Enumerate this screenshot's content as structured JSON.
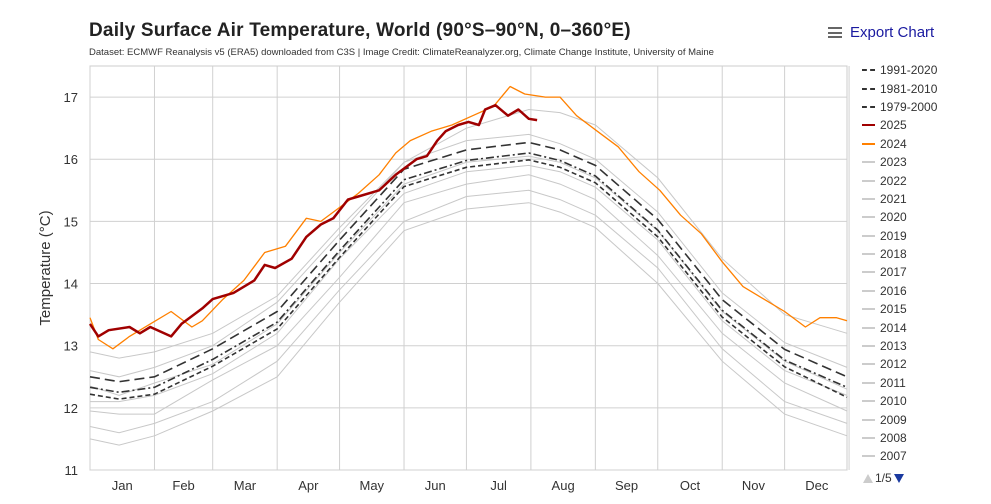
{
  "header": {
    "title": "Daily Surface Air Temperature, World (90°S–90°N, 0–360°E)",
    "subtitle": "Dataset: ECMWF Reanalysis v5 (ERA5) downloaded from C3S | Image Credit: ClimateReanalyzer.org, Climate Change Institute, University of Maine",
    "export_label": "Export Chart",
    "export_icon": "hamburger-menu-icon"
  },
  "legend": {
    "items": [
      {
        "label": "1991-2020",
        "color": "#333333",
        "style": "long-dash"
      },
      {
        "label": "1981-2010",
        "color": "#333333",
        "style": "dash-dot"
      },
      {
        "label": "1979-2000",
        "color": "#333333",
        "style": "short-dash"
      },
      {
        "label": "2025",
        "color": "#a00000",
        "style": "solid"
      },
      {
        "label": "2024",
        "color": "#ff8000",
        "style": "solid"
      },
      {
        "label": "2023",
        "color": "#cccccc",
        "style": "solid"
      },
      {
        "label": "2022",
        "color": "#cccccc",
        "style": "solid"
      },
      {
        "label": "2021",
        "color": "#cccccc",
        "style": "solid"
      },
      {
        "label": "2020",
        "color": "#cccccc",
        "style": "solid"
      },
      {
        "label": "2019",
        "color": "#cccccc",
        "style": "solid"
      },
      {
        "label": "2018",
        "color": "#cccccc",
        "style": "solid"
      },
      {
        "label": "2017",
        "color": "#cccccc",
        "style": "solid"
      },
      {
        "label": "2016",
        "color": "#cccccc",
        "style": "solid"
      },
      {
        "label": "2015",
        "color": "#cccccc",
        "style": "solid"
      },
      {
        "label": "2014",
        "color": "#cccccc",
        "style": "solid"
      },
      {
        "label": "2013",
        "color": "#cccccc",
        "style": "solid"
      },
      {
        "label": "2012",
        "color": "#cccccc",
        "style": "solid"
      },
      {
        "label": "2011",
        "color": "#cccccc",
        "style": "solid"
      },
      {
        "label": "2010",
        "color": "#cccccc",
        "style": "solid"
      },
      {
        "label": "2009",
        "color": "#cccccc",
        "style": "solid"
      },
      {
        "label": "2008",
        "color": "#cccccc",
        "style": "solid"
      },
      {
        "label": "2007",
        "color": "#cccccc",
        "style": "solid"
      }
    ],
    "page": "1/5"
  },
  "chart_data": {
    "type": "line",
    "title": "Daily Surface Air Temperature, World (90°S–90°N, 0–360°E)",
    "xlabel": "",
    "ylabel": "Temperature (°C)",
    "x_unit": "day of year",
    "xlim": [
      1,
      365
    ],
    "ylim": [
      11,
      17.5
    ],
    "yticks": [
      11,
      12,
      13,
      14,
      15,
      16,
      17
    ],
    "month_labels": [
      "Jan",
      "Feb",
      "Mar",
      "Apr",
      "May",
      "Jun",
      "Jul",
      "Aug",
      "Sep",
      "Oct",
      "Nov",
      "Dec"
    ],
    "grid": true,
    "legend_position": "right",
    "series": [
      {
        "name": "1991-2020",
        "color": "#333333",
        "style": "long-dash",
        "x": [
          1,
          15,
          32,
          60,
          91,
          121,
          152,
          182,
          212,
          227,
          244,
          274,
          305,
          335,
          365
        ],
        "y": [
          12.5,
          12.42,
          12.5,
          12.95,
          13.55,
          14.7,
          15.84,
          16.15,
          16.27,
          16.15,
          15.9,
          15.03,
          13.74,
          12.94,
          12.5
        ]
      },
      {
        "name": "1981-2010",
        "color": "#333333",
        "style": "dash-dot",
        "x": [
          1,
          15,
          32,
          60,
          91,
          121,
          152,
          182,
          212,
          227,
          244,
          274,
          305,
          335,
          365
        ],
        "y": [
          12.33,
          12.25,
          12.33,
          12.78,
          13.38,
          14.53,
          15.67,
          15.98,
          16.1,
          15.98,
          15.73,
          14.86,
          13.57,
          12.77,
          12.33
        ]
      },
      {
        "name": "1979-2000",
        "color": "#333333",
        "style": "short-dash",
        "x": [
          1,
          15,
          32,
          60,
          91,
          121,
          152,
          182,
          212,
          227,
          244,
          274,
          305,
          335,
          365
        ],
        "y": [
          12.22,
          12.14,
          12.22,
          12.67,
          13.27,
          14.42,
          15.56,
          15.87,
          15.99,
          15.87,
          15.62,
          14.75,
          13.46,
          12.66,
          12.17
        ]
      },
      {
        "name": "2024",
        "color": "#ff8000",
        "style": "solid",
        "x": [
          1,
          5,
          12,
          20,
          30,
          40,
          50,
          55,
          65,
          75,
          85,
          95,
          105,
          112,
          120,
          130,
          140,
          148,
          155,
          165,
          175,
          185,
          195,
          203,
          210,
          220,
          227,
          235,
          245,
          255,
          265,
          275,
          285,
          295,
          305,
          315,
          325,
          335,
          345,
          352,
          360,
          365
        ],
        "y": [
          13.45,
          13.1,
          12.95,
          13.15,
          13.35,
          13.55,
          13.3,
          13.4,
          13.75,
          14.05,
          14.5,
          14.6,
          15.05,
          15.0,
          15.2,
          15.45,
          15.75,
          16.1,
          16.3,
          16.45,
          16.55,
          16.7,
          16.85,
          17.17,
          17.05,
          17.0,
          17.0,
          16.7,
          16.45,
          16.2,
          15.8,
          15.5,
          15.1,
          14.8,
          14.35,
          13.95,
          13.75,
          13.55,
          13.3,
          13.45,
          13.45,
          13.4
        ]
      },
      {
        "name": "2025",
        "color": "#a00000",
        "style": "solid",
        "x": [
          1,
          5,
          10,
          20,
          25,
          30,
          40,
          45,
          55,
          60,
          70,
          80,
          85,
          90,
          98,
          105,
          112,
          118,
          125,
          130,
          140,
          148,
          158,
          163,
          168,
          172,
          178,
          183,
          188,
          191,
          196,
          202,
          207,
          212,
          216
        ],
        "y": [
          13.35,
          13.15,
          13.25,
          13.3,
          13.2,
          13.3,
          13.15,
          13.35,
          13.6,
          13.75,
          13.85,
          14.05,
          14.3,
          14.25,
          14.4,
          14.75,
          14.95,
          15.05,
          15.35,
          15.4,
          15.5,
          15.75,
          16.0,
          16.05,
          16.3,
          16.45,
          16.55,
          16.6,
          16.55,
          16.8,
          16.87,
          16.7,
          16.8,
          16.65,
          16.63
        ]
      }
    ],
    "other_years": {
      "color": "#c8c8c8",
      "x": [
        1,
        15,
        32,
        60,
        91,
        121,
        152,
        182,
        212,
        227,
        244,
        274,
        305,
        335,
        365
      ],
      "traces": [
        [
          11.7,
          11.6,
          11.75,
          12.1,
          12.75,
          13.9,
          15.0,
          15.4,
          15.5,
          15.35,
          15.1,
          14.25,
          12.95,
          12.1,
          11.75
        ],
        [
          11.95,
          11.9,
          11.9,
          12.45,
          13.0,
          14.1,
          15.3,
          15.6,
          15.75,
          15.6,
          15.35,
          14.45,
          13.2,
          12.4,
          11.95
        ],
        [
          12.1,
          12.1,
          12.2,
          12.55,
          13.2,
          14.4,
          15.45,
          15.8,
          15.9,
          15.8,
          15.55,
          14.7,
          13.4,
          12.6,
          12.2
        ],
        [
          11.5,
          11.4,
          11.55,
          11.95,
          12.5,
          13.7,
          14.85,
          15.2,
          15.3,
          15.15,
          14.9,
          14.0,
          12.75,
          11.9,
          11.55
        ],
        [
          12.6,
          12.5,
          12.65,
          13.0,
          13.7,
          14.8,
          15.95,
          16.3,
          16.4,
          16.25,
          16.0,
          15.15,
          13.85,
          13.05,
          12.65
        ],
        [
          12.9,
          12.8,
          12.9,
          13.2,
          13.8,
          14.9,
          15.95,
          16.5,
          16.8,
          16.75,
          16.55,
          15.7,
          14.4,
          13.5,
          13.2
        ],
        [
          12.35,
          12.2,
          12.4,
          12.7,
          13.35,
          14.5,
          15.6,
          15.95,
          16.05,
          15.95,
          15.7,
          14.85,
          13.55,
          12.75,
          12.3
        ]
      ]
    }
  }
}
